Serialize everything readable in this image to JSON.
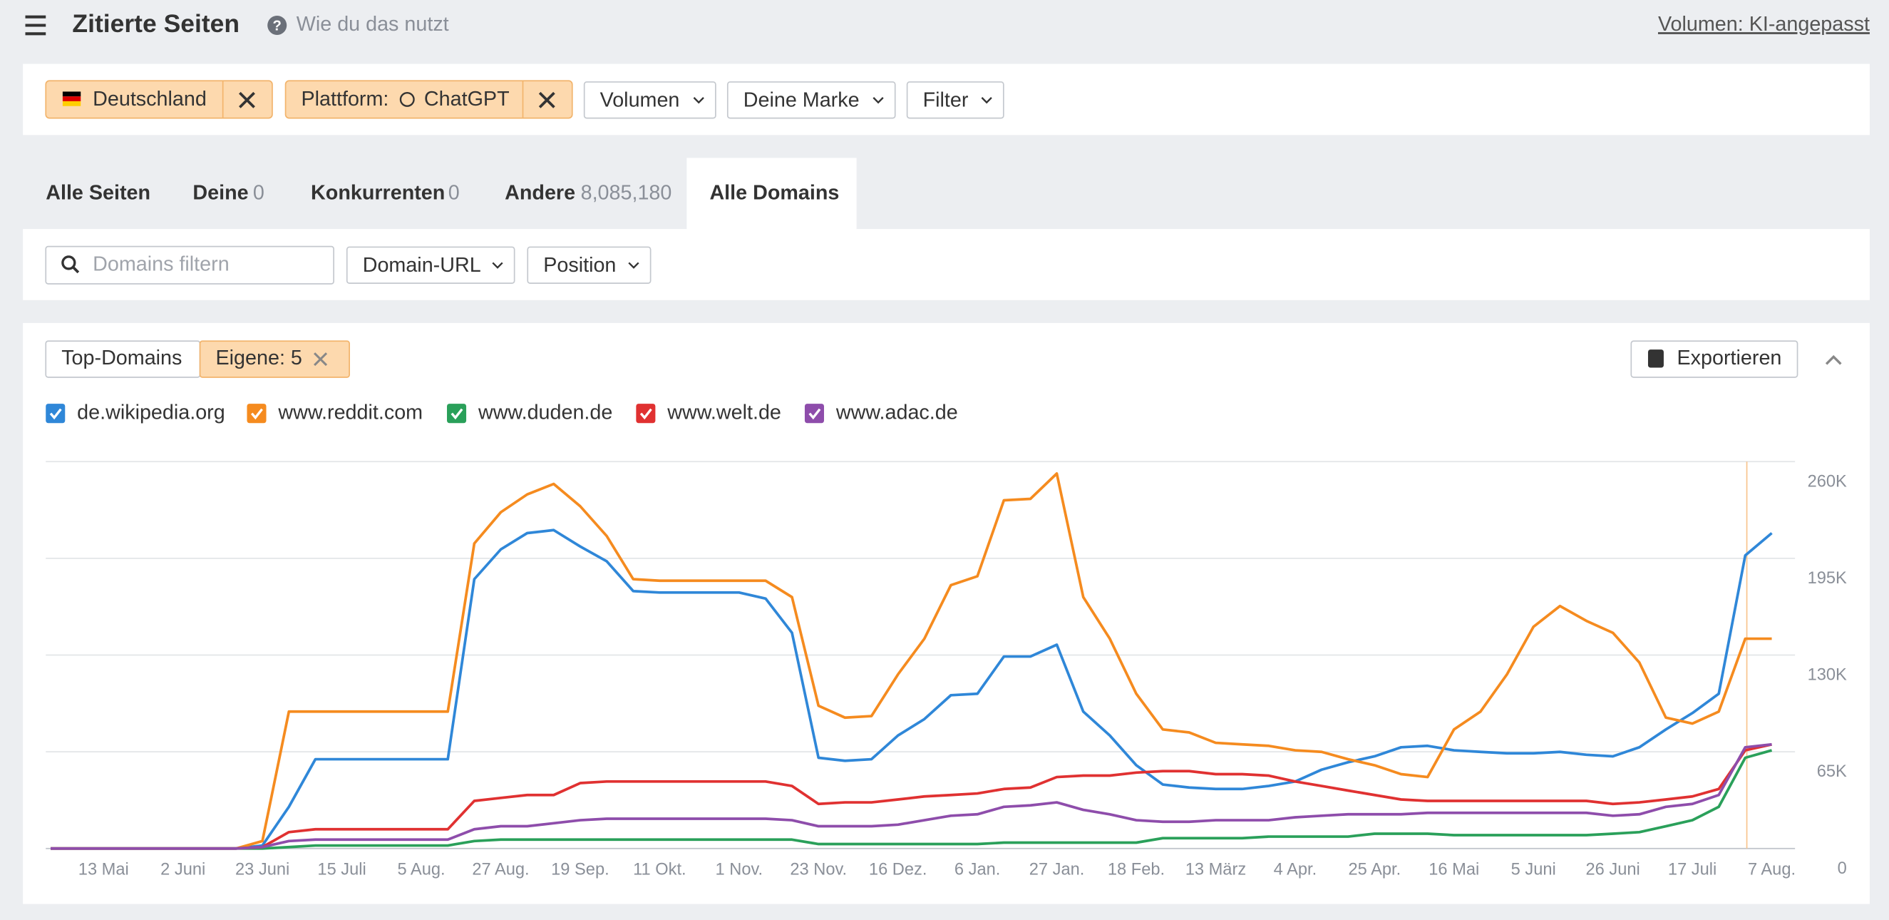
{
  "header": {
    "title": "Zitierte Seiten",
    "help": "Wie du das nutzt",
    "volume": "Volumen: KI-angepasst"
  },
  "filters": {
    "country": "Deutschland",
    "platform_label": "Plattform:",
    "platform": "ChatGPT",
    "dropdowns": [
      "Volumen",
      "Deine Marke",
      "Filter"
    ]
  },
  "tabs": [
    {
      "label": "Alle Seiten"
    },
    {
      "label": "Deine",
      "count": "0"
    },
    {
      "label": "Konkurrenten",
      "count": "0"
    },
    {
      "label": "Andere",
      "count": "8,085,180"
    },
    {
      "label": "Alle Domains"
    }
  ],
  "toolbar": {
    "search_placeholder": "Domains filtern",
    "dropdowns": [
      "Domain-URL",
      "Position"
    ]
  },
  "panel": {
    "toggle": [
      "Top-Domains",
      "Eigene: 5"
    ],
    "export": "Exportieren"
  },
  "chart_data": {
    "type": "line",
    "grid": true,
    "ylim": [
      0,
      260000
    ],
    "yticks": [
      0,
      {
        "value": 65000,
        "label": "65K"
      },
      {
        "value": 130000,
        "label": "130K"
      },
      {
        "value": 195000,
        "label": "195K"
      },
      {
        "value": 260000,
        "label": "260K"
      }
    ],
    "categories": [
      null,
      null,
      "13 Mai",
      null,
      null,
      "2 Juni",
      null,
      null,
      "23 Juni",
      null,
      null,
      "15 Juli",
      null,
      null,
      "5 Aug.",
      null,
      null,
      "27 Aug.",
      null,
      null,
      "19 Sep.",
      null,
      null,
      "11 Okt.",
      null,
      null,
      "1 Nov.",
      null,
      null,
      "23 Nov.",
      null,
      null,
      "16 Dez.",
      null,
      null,
      "6 Jan.",
      null,
      null,
      "27 Jan.",
      null,
      null,
      "18 Feb.",
      null,
      null,
      "13 März",
      null,
      null,
      "4 Apr.",
      null,
      null,
      "25 Apr.",
      null,
      null,
      "16 Mai",
      null,
      null,
      "5 Juni",
      null,
      null,
      "26 Juni",
      null,
      null,
      "17 Juli",
      null,
      null,
      "7 Aug."
    ],
    "series": [
      {
        "name": "de.wikipedia.org",
        "color": "#2f87d8",
        "values": [
          0,
          0,
          0,
          0,
          0,
          0,
          0,
          0,
          2000,
          28000,
          60000,
          60000,
          60000,
          60000,
          60000,
          60000,
          181000,
          201000,
          212000,
          214000,
          203000,
          193000,
          173000,
          172000,
          172000,
          172000,
          172000,
          168000,
          145000,
          61000,
          59000,
          60000,
          76000,
          87000,
          103000,
          104000,
          129000,
          129000,
          137000,
          92000,
          76000,
          56000,
          43000,
          41000,
          40000,
          40000,
          42000,
          45000,
          53000,
          58000,
          62000,
          68000,
          69000,
          66000,
          65000,
          64000,
          64000,
          65000,
          63000,
          62000,
          68000,
          80000,
          91000,
          104000,
          197000,
          212000
        ]
      },
      {
        "name": "www.reddit.com",
        "color": "#f58b1f",
        "values": [
          0,
          0,
          0,
          0,
          0,
          0,
          0,
          0,
          5000,
          92000,
          92000,
          92000,
          92000,
          92000,
          92000,
          92000,
          205000,
          226000,
          238000,
          245000,
          230000,
          210000,
          181000,
          180000,
          180000,
          180000,
          180000,
          180000,
          169000,
          96000,
          88000,
          89000,
          117000,
          141000,
          177000,
          183000,
          234000,
          235000,
          252000,
          169000,
          141000,
          104000,
          80000,
          78000,
          71000,
          70000,
          69000,
          66000,
          65000,
          60000,
          56000,
          50000,
          48000,
          80000,
          92000,
          117000,
          149000,
          163000,
          153000,
          145000,
          125000,
          88000,
          84000,
          92000,
          141000,
          141000
        ]
      },
      {
        "name": "www.duden.de",
        "color": "#2aa05a",
        "values": [
          0,
          0,
          0,
          0,
          0,
          0,
          0,
          0,
          0,
          1000,
          2000,
          2000,
          2000,
          2000,
          2000,
          2000,
          5000,
          6000,
          6000,
          6000,
          6000,
          6000,
          6000,
          6000,
          6000,
          6000,
          6000,
          6000,
          6000,
          3000,
          3000,
          3000,
          3000,
          3000,
          3000,
          3000,
          4000,
          4000,
          4000,
          4000,
          4000,
          4000,
          7000,
          7000,
          7000,
          7000,
          8000,
          8000,
          8000,
          8000,
          10000,
          10000,
          10000,
          9000,
          9000,
          9000,
          9000,
          9000,
          9000,
          10000,
          11000,
          15000,
          19000,
          28000,
          61000,
          66000
        ]
      },
      {
        "name": "www.welt.de",
        "color": "#e03131",
        "values": [
          0,
          0,
          0,
          0,
          0,
          0,
          0,
          0,
          1000,
          11000,
          13000,
          13000,
          13000,
          13000,
          13000,
          13000,
          32000,
          34000,
          36000,
          36000,
          44000,
          45000,
          45000,
          45000,
          45000,
          45000,
          45000,
          45000,
          42000,
          30000,
          31000,
          31000,
          33000,
          35000,
          36000,
          37000,
          40000,
          41000,
          48000,
          49000,
          49000,
          51000,
          52000,
          52000,
          50000,
          50000,
          49000,
          45000,
          42000,
          39000,
          36000,
          33000,
          32000,
          32000,
          32000,
          32000,
          32000,
          32000,
          32000,
          30000,
          31000,
          33000,
          35000,
          40000,
          66000,
          70000
        ]
      },
      {
        "name": "www.adac.de",
        "color": "#8e4dab",
        "values": [
          0,
          0,
          0,
          0,
          0,
          0,
          0,
          0,
          1000,
          5000,
          6000,
          6000,
          6000,
          6000,
          6000,
          6000,
          13000,
          15000,
          15000,
          17000,
          19000,
          20000,
          20000,
          20000,
          20000,
          20000,
          20000,
          20000,
          19000,
          15000,
          15000,
          15000,
          16000,
          19000,
          22000,
          23000,
          28000,
          29000,
          31000,
          26000,
          23000,
          19000,
          18000,
          18000,
          19000,
          19000,
          19000,
          21000,
          22000,
          23000,
          23000,
          23000,
          24000,
          24000,
          24000,
          24000,
          24000,
          24000,
          24000,
          22000,
          23000,
          28000,
          30000,
          36000,
          68000,
          70000
        ]
      }
    ]
  }
}
